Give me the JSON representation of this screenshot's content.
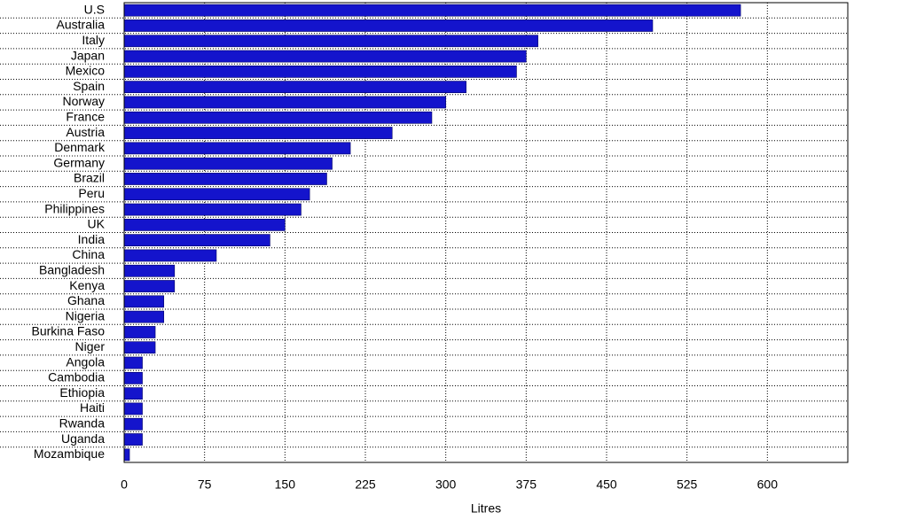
{
  "chart_data": {
    "type": "bar",
    "orientation": "horizontal",
    "x_label": "Litres",
    "categories": [
      "U.S",
      "Australia",
      "Italy",
      "Japan",
      "Mexico",
      "Spain",
      "Norway",
      "France",
      "Austria",
      "Denmark",
      "Germany",
      "Brazil",
      "Peru",
      "Philippines",
      "UK",
      "India",
      "China",
      "Bangladesh",
      "Kenya",
      "Ghana",
      "Nigeria",
      "Burkina Faso",
      "Niger",
      "Angola",
      "Cambodia",
      "Ethiopia",
      "Haiti",
      "Rwanda",
      "Uganda",
      "Mozambique"
    ],
    "values": [
      575,
      493,
      386,
      375,
      366,
      319,
      300,
      287,
      250,
      211,
      194,
      189,
      173,
      165,
      150,
      136,
      86,
      47,
      47,
      37,
      37,
      29,
      29,
      17,
      17,
      17,
      17,
      17,
      17,
      5
    ],
    "color": "#1414cc",
    "xlim": [
      0,
      675
    ],
    "xticks": [
      0,
      75,
      150,
      225,
      300,
      375,
      450,
      525,
      600
    ],
    "grid": true
  }
}
